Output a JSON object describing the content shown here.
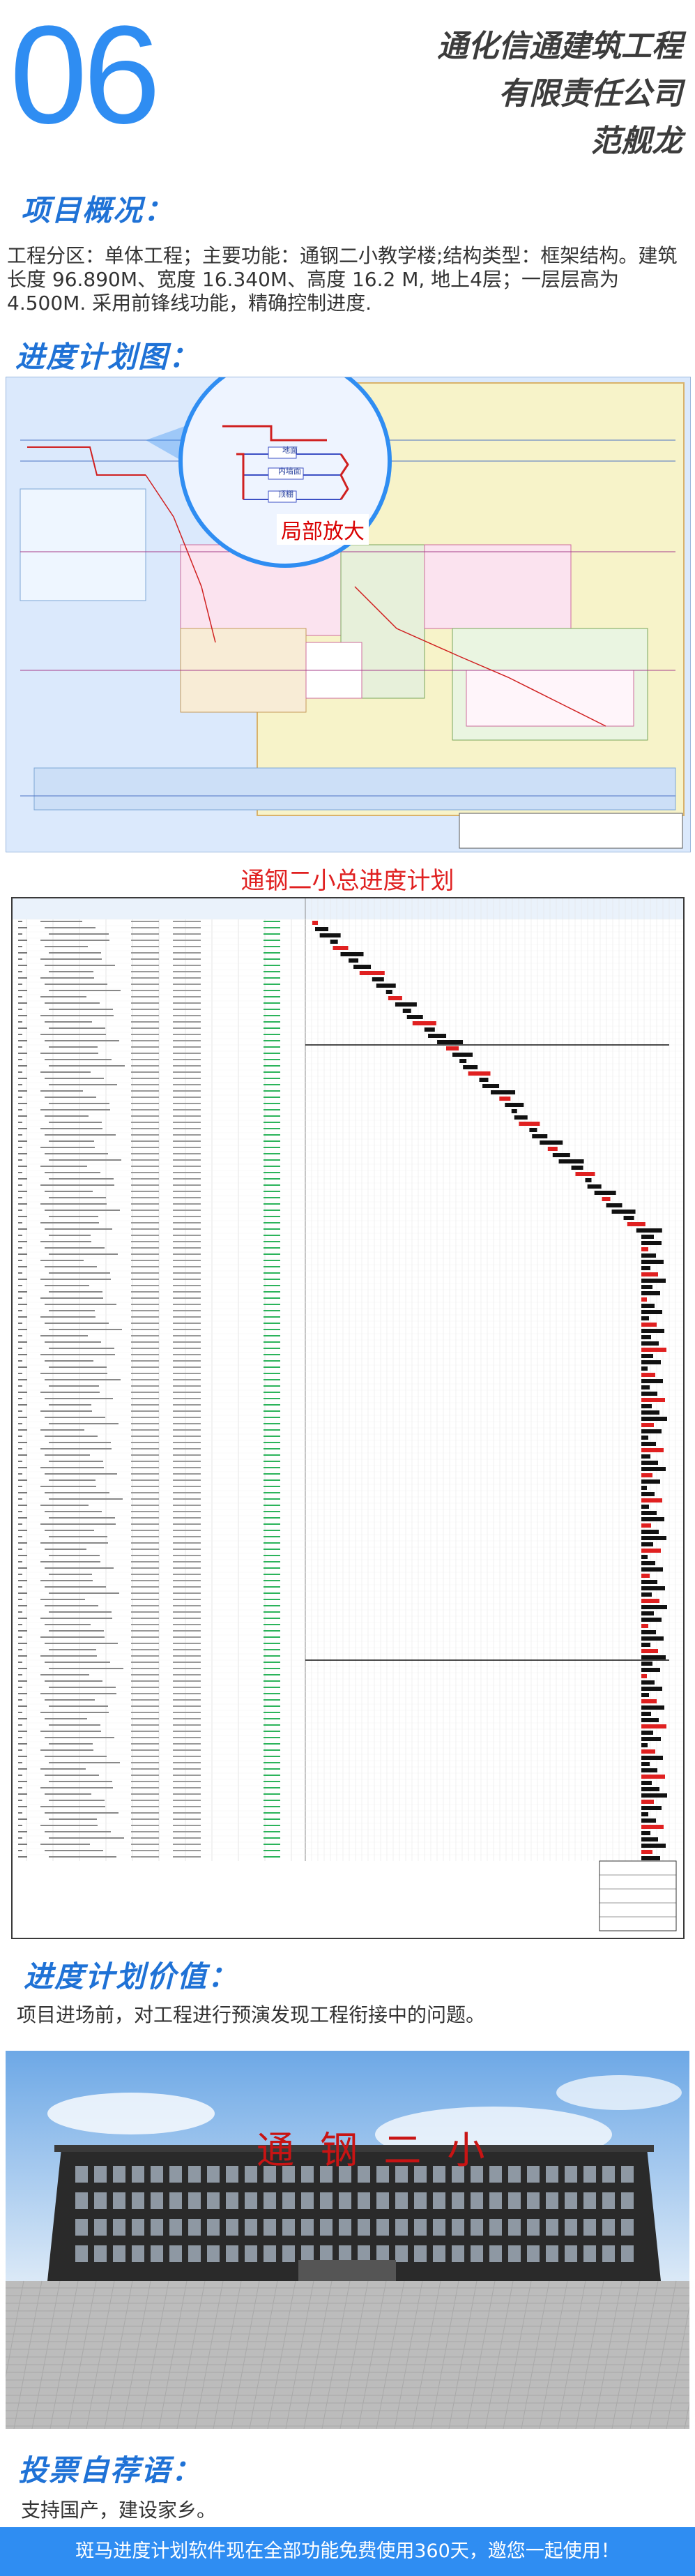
{
  "header": {
    "number": "06",
    "company_line1": "通化信通建筑工程",
    "company_line2": "有限责任公司",
    "person": "范舰龙"
  },
  "overview": {
    "title": "项目概况：",
    "text": "工程分区：单体工程；主要功能：通钢二小教学楼;结构类型：框架结构。建筑长度 96.890M、宽度 16.340M、高度 16.2 M, 地上4层；一层层高为4.500M. 采用前锋线功能，精确控制进度."
  },
  "schedule_image": {
    "title": "进度计划图：",
    "zoom_label": "局部放大",
    "zoom_tags": [
      "地面",
      "内墙面",
      "顶棚"
    ]
  },
  "gantt": {
    "title": "通钢二小总进度计划"
  },
  "value_section": {
    "title": "进度计划价值：",
    "text": "项目进场前，对工程进行预演发现工程衔接中的问题。"
  },
  "building_render": {
    "sign_text": "通 钢 二 小"
  },
  "vote_section": {
    "title": "投票自荐语：",
    "text": "支持国产，建设家乡。"
  },
  "footer": {
    "text": "斑马进度计划软件现在全部功能免费使用360天，邀您一起使用！"
  },
  "colors": {
    "accent_blue": "#2f8df2",
    "critical_red": "#e02020",
    "title_blue": "#1f72d6"
  }
}
